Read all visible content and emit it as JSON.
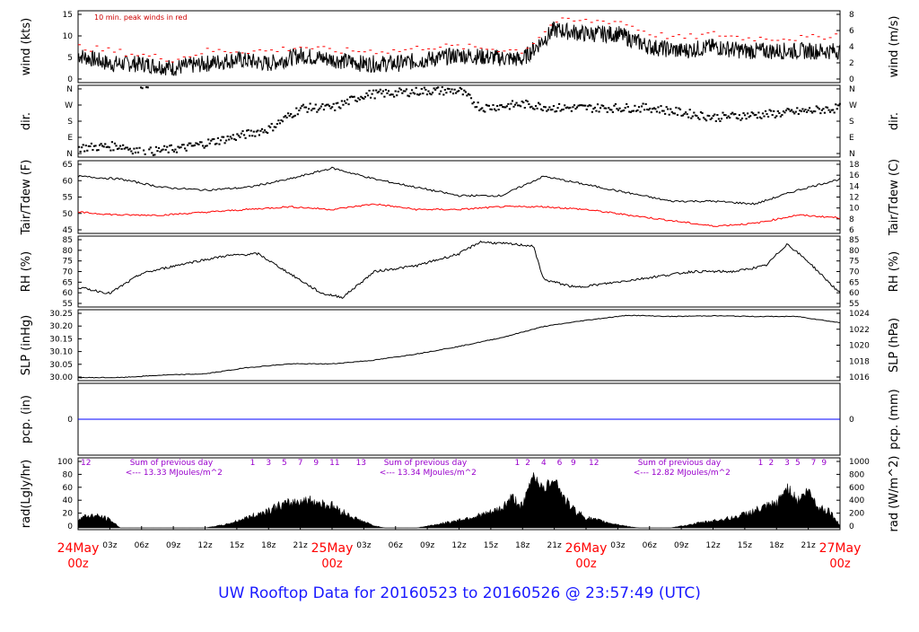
{
  "chart_data": {
    "type": "line",
    "title": "UW Rooftop Data for 20160523  to  20160526 @ 23:57:49  (UTC)",
    "time_axis": {
      "hours_total": 72,
      "hour_ticks": [
        "03z",
        "06z",
        "09z",
        "12z",
        "15z",
        "18z",
        "21z",
        "03z",
        "06z",
        "09z",
        "12z",
        "15z",
        "18z",
        "21z",
        "03z",
        "06z",
        "09z",
        "12z",
        "15z",
        "18z",
        "21z"
      ],
      "day_labels": [
        {
          "date": "24May",
          "time": "00z",
          "hour": 0
        },
        {
          "date": "25May",
          "time": "00z",
          "hour": 24
        },
        {
          "date": "26May",
          "time": "00z",
          "hour": 48
        },
        {
          "date": "27May",
          "time": "00z",
          "hour": 72
        }
      ]
    },
    "panels": {
      "wind": {
        "ylabel_left": "wind (kts)",
        "ylabel_right": "wind (m/s)",
        "left_ticks": [
          "0",
          "5",
          "10",
          "15"
        ],
        "right_ticks": [
          "0",
          "2",
          "4",
          "6",
          "8"
        ],
        "ylim": [
          0,
          16
        ],
        "annotation": "10 min. peak winds in red",
        "series": [
          {
            "name": "wind",
            "color": "#000000",
            "hours": [
              0,
              3,
              6,
              9,
              12,
              15,
              18,
              21,
              24,
              27,
              30,
              33,
              36,
              42,
              45,
              48,
              51,
              54,
              57,
              60,
              63,
              66,
              69,
              72
            ],
            "values": [
              6,
              4,
              4,
              3,
              4,
              5,
              4,
              6,
              5,
              4,
              4,
              5,
              6,
              5,
              12,
              11,
              11,
              8,
              7,
              8,
              7,
              7,
              7,
              7
            ]
          },
          {
            "name": "10 min. peak winds in red",
            "color": "#ff0000",
            "hours": [
              0,
              3,
              6,
              9,
              12,
              15,
              18,
              21,
              24,
              27,
              30,
              33,
              36,
              42,
              45,
              48,
              51,
              54,
              57,
              60,
              63,
              66,
              69,
              72
            ],
            "values": [
              8,
              7,
              6,
              5,
              7,
              7,
              7,
              8,
              7,
              7,
              7,
              8,
              8,
              7,
              14,
              14,
              14,
              11,
              10,
              11,
              10,
              10,
              10,
              11
            ]
          }
        ]
      },
      "dir": {
        "ylabel_left": "dir.",
        "ylabel_right": "dir.",
        "left_ticks": [
          "N",
          "E",
          "S",
          "W",
          "N"
        ],
        "right_ticks": [
          "N",
          "E",
          "S",
          "W",
          "N"
        ],
        "ylim": [
          0,
          360
        ],
        "series": [
          {
            "name": "dir",
            "color": "#000000",
            "hours": [
              0,
              4,
              6,
              10,
              15,
              18,
              21,
              24,
              27,
              33,
              36,
              38,
              42,
              45,
              48,
              54,
              60,
              66,
              72
            ],
            "values": [
              40,
              50,
              15,
              40,
              100,
              140,
              250,
              250,
              320,
              340,
              340,
              250,
              270,
              250,
              250,
              250,
              200,
              220,
              250
            ]
          }
        ]
      },
      "temp": {
        "ylabel_left": "Tair/Tdew (F)",
        "ylabel_right": "Tair/Tdew (C)",
        "left_ticks": [
          "45",
          "50",
          "55",
          "60",
          "65"
        ],
        "right_ticks": [
          "6",
          "8",
          "10",
          "12",
          "14",
          "16",
          "18"
        ],
        "ylim": [
          42,
          67
        ],
        "series": [
          {
            "name": "Tair",
            "color": "#000000",
            "hours": [
              0,
              4,
              8,
              12,
              16,
              20,
              24,
              28,
              32,
              36,
              40,
              44,
              48,
              52,
              56,
              60,
              64,
              68,
              72
            ],
            "values": [
              62,
              61,
              58,
              57,
              58,
              61,
              65,
              61,
              58,
              55,
              55,
              62,
              59,
              56,
              53,
              53,
              52,
              57,
              61
            ]
          },
          {
            "name": "Tdew",
            "color": "#ff0000",
            "hours": [
              0,
              4,
              8,
              12,
              16,
              20,
              24,
              28,
              32,
              36,
              40,
              44,
              48,
              52,
              56,
              60,
              64,
              68,
              72
            ],
            "values": [
              49,
              48,
              48,
              49,
              50,
              51,
              50,
              52,
              50,
              50,
              51,
              51,
              50,
              48,
              46,
              44,
              45,
              48,
              47
            ]
          }
        ]
      },
      "rh": {
        "ylabel_left": "RH (%)",
        "ylabel_right": "RH (%)",
        "left_ticks": [
          "55",
          "60",
          "65",
          "70",
          "75",
          "80",
          "85"
        ],
        "right_ticks": [
          "55",
          "60",
          "65",
          "70",
          "75",
          "80",
          "85"
        ],
        "ylim": [
          54,
          88
        ],
        "series": [
          {
            "name": "RH",
            "color": "#000000",
            "hours": [
              0,
              3,
              6,
              10,
              14,
              17,
              20,
              23,
              25,
              28,
              32,
              36,
              38,
              43,
              44,
              47,
              50,
              54,
              58,
              62,
              65,
              67,
              69,
              72
            ],
            "values": [
              63,
              60,
              70,
              75,
              79,
              80,
              70,
              60,
              58,
              71,
              74,
              80,
              86,
              84,
              67,
              63,
              65,
              68,
              71,
              71,
              74,
              85,
              76,
              60
            ]
          }
        ]
      },
      "slp": {
        "ylabel_left": "SLP (inHg)",
        "ylabel_right": "SLP (hPa)",
        "left_ticks": [
          "30.00",
          "30.05",
          "30.10",
          "30.15",
          "30.20",
          "30.25"
        ],
        "right_ticks": [
          "1016",
          "1018",
          "1020",
          "1022",
          "1024"
        ],
        "ylim": [
          29.99,
          30.26
        ],
        "series": [
          {
            "name": "SLP",
            "color": "#000000",
            "hours": [
              0,
              4,
              8,
              12,
              16,
              20,
              24,
              28,
              32,
              36,
              40,
              44,
              48,
              52,
              56,
              60,
              64,
              68,
              72
            ],
            "values": [
              29.995,
              29.995,
              30.005,
              30.01,
              30.035,
              30.05,
              30.05,
              30.065,
              30.09,
              30.12,
              30.155,
              30.2,
              30.225,
              30.245,
              30.24,
              30.243,
              30.24,
              30.24,
              30.215
            ]
          }
        ]
      },
      "pcp": {
        "ylabel_left": "pcp. (in)",
        "ylabel_right": "pcp. (mm)",
        "left_ticks": [
          "0"
        ],
        "right_ticks": [
          "0"
        ],
        "series": [
          {
            "name": "pcp",
            "color": "#0000ff",
            "hours": [
              0,
              72
            ],
            "values": [
              0,
              0
            ]
          }
        ]
      },
      "rad": {
        "ylabel_left": "rad(Lgly/hr)",
        "ylabel_right": "rad (W/m^2)",
        "left_ticks": [
          "0",
          "20",
          "40",
          "60",
          "80",
          "100"
        ],
        "right_ticks": [
          "0",
          "200",
          "400",
          "600",
          "800",
          "1000"
        ],
        "ylim": [
          0,
          100
        ],
        "series": [
          {
            "name": "rad",
            "color": "#000000",
            "hours": [
              0,
              0.5,
              1,
              2,
              3,
              4,
              8,
              12,
              14,
              17,
              19,
              20,
              21,
              22,
              24,
              26,
              28,
              29,
              32,
              35,
              37,
              39,
              40,
              41,
              42,
              43,
              44,
              45,
              46,
              47,
              48,
              50,
              52,
              53,
              56,
              59,
              62,
              64,
              66,
              67,
              68,
              69,
              70,
              71,
              72
            ],
            "values": [
              14,
              16,
              18,
              17,
              12,
              0,
              0,
              0,
              5,
              20,
              32,
              36,
              40,
              40,
              32,
              15,
              3,
              0,
              0,
              8,
              15,
              22,
              28,
              45,
              30,
              80,
              55,
              75,
              40,
              25,
              15,
              8,
              2,
              0,
              0,
              8,
              15,
              25,
              35,
              60,
              40,
              55,
              30,
              25,
              3
            ]
          }
        ],
        "annotations": [
          {
            "text": "Sum of previous day",
            "hour": 1.5
          },
          {
            "text": "<--- 13.33 MJoules/m^2",
            "hour": 1.5
          },
          {
            "text": "Sum of previous day",
            "hour": 25.5
          },
          {
            "text": "<--- 13.34 MJoules/m^2",
            "hour": 25.5
          },
          {
            "text": "Sum of previous day",
            "hour": 49.5
          },
          {
            "text": "<--- 12.82 MJoules/m^2",
            "hour": 49.5
          }
        ],
        "hour_markers": [
          "12",
          "1",
          "3",
          "5",
          "7",
          "9",
          "11",
          "13",
          "1",
          "2",
          "4",
          "6",
          "9",
          "12",
          "1",
          "2",
          "3",
          "5",
          "7",
          "9"
        ],
        "hour_marker_hours": [
          0,
          16,
          17.5,
          19,
          20.5,
          22,
          23.5,
          26,
          41,
          42,
          43.5,
          45,
          46.3,
          48,
          64,
          65,
          66.5,
          67.5,
          69,
          70
        ]
      }
    }
  }
}
